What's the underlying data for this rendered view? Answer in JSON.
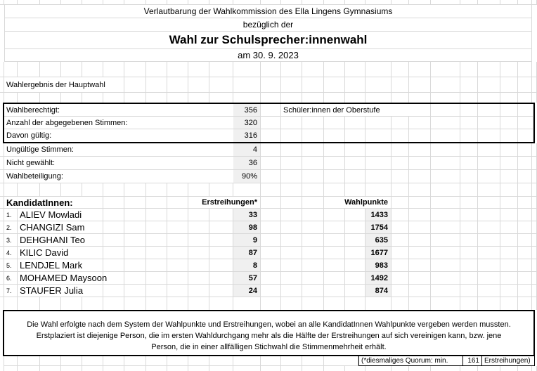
{
  "header": {
    "line1": "Verlautbarung der Wahlkommission des Ella Lingens Gymnasiums",
    "line2": "bezüglich der",
    "title": "Wahl zur Schulsprecher:innenwahl",
    "date": "am 30. 9. 2023"
  },
  "section_label": "Wahlergebnis der Hauptwahl",
  "stats": {
    "rows": [
      {
        "label": "Wahlberechtigt:",
        "value": "356",
        "note": "Schüler:innen der Oberstufe"
      },
      {
        "label": "Anzahl der abgegebenen Stimmen:",
        "value": "320"
      },
      {
        "label": "Davon gültig:",
        "value": "316"
      },
      {
        "label": "Ungültige Stimmen:",
        "value": "4"
      },
      {
        "label": "Nicht gewählt:",
        "value": "36"
      },
      {
        "label": "Wahlbeteiligung:",
        "value": "90%"
      }
    ]
  },
  "candidates": {
    "header": {
      "label": "KandidatInnen:",
      "col1": "Erstreihungen*",
      "col2": "Wahlpunkte"
    },
    "rows": [
      {
        "num": "1.",
        "name": "ALIEV Mowladi",
        "erstreihungen": "33",
        "wahlpunkte": "1433"
      },
      {
        "num": "2.",
        "name": "CHANGIZI Sam",
        "erstreihungen": "98",
        "wahlpunkte": "1754"
      },
      {
        "num": "3.",
        "name": "DEHGHANI Teo",
        "erstreihungen": "9",
        "wahlpunkte": "635"
      },
      {
        "num": "4.",
        "name": "KILIC David",
        "erstreihungen": "87",
        "wahlpunkte": "1677"
      },
      {
        "num": "5.",
        "name": "LENDJEL Mark",
        "erstreihungen": "8",
        "wahlpunkte": "983"
      },
      {
        "num": "6.",
        "name": "MOHAMED Maysoon",
        "erstreihungen": "57",
        "wahlpunkte": "1492"
      },
      {
        "num": "7.",
        "name": "STAUFER Julia",
        "erstreihungen": "24",
        "wahlpunkte": "874"
      }
    ]
  },
  "footer": {
    "line1": "Die Wahl erfolgte nach dem System der Wahlpunkte und Erstreihungen, wobei an alle KandidatInnen Wahlpunkte vergeben werden mussten.",
    "line2": "Erstplaziert ist diejenige Person, die im ersten Wahldurchgang mehr als die Hälfte der Erstreihungen auf sich vereinigen kann, bzw. jene",
    "line3": "Person, die in einer allfälligen Stichwahl die Stimmenmehrheit erhält.",
    "quorum_label": "(*diesmaliges Quorum: min.",
    "quorum_value": "161",
    "quorum_unit": "Erstreihungen)"
  },
  "colors": {
    "gridline": "#d9d9d9",
    "cell_fill": "#f0f0f0",
    "border": "#000000"
  }
}
